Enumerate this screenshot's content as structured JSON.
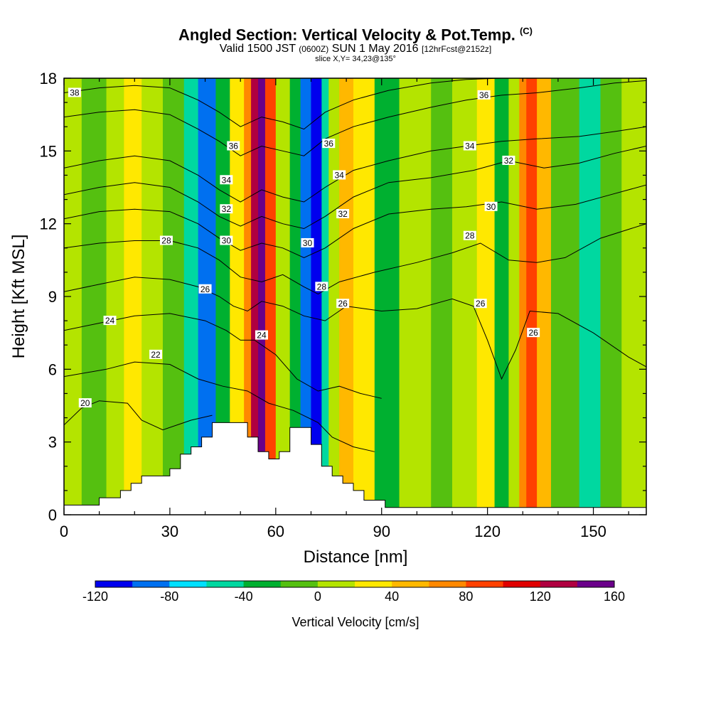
{
  "header": {
    "title": "Angled Section: Vertical Velocity & Pot.Temp.",
    "title_mark": "(C)",
    "valid_prefix": "Valid 1500 JST",
    "valid_utc": "(0600Z)",
    "valid_date": "SUN 1 May 2016",
    "forecast": "[12hrFcst@2152z]",
    "slice": "slice X,Y= 34,23@135°"
  },
  "chart_data": {
    "type": "heatmap",
    "xlabel": "Distance [nm]",
    "ylabel": "Height [Kft MSL]",
    "xlim": [
      0,
      165
    ],
    "ylim": [
      0,
      18
    ],
    "xticks": [
      0,
      30,
      60,
      90,
      120,
      150
    ],
    "yticks": [
      0,
      3,
      6,
      9,
      12,
      15,
      18
    ],
    "colorbar": {
      "title": "Vertical Velocity [cm/s]",
      "labels": [
        "-120",
        "-80",
        "-40",
        "0",
        "40",
        "80",
        "120",
        "160"
      ],
      "levels": [
        -120,
        -100,
        -80,
        -60,
        -40,
        -20,
        0,
        20,
        40,
        60,
        80,
        100,
        120,
        140,
        160
      ],
      "colors": [
        "#0000ee",
        "#0070f0",
        "#00e0ff",
        "#00d8a0",
        "#00b030",
        "#55c010",
        "#b4e400",
        "#ffe800",
        "#ffb800",
        "#ff8800",
        "#ff4000",
        "#e00000",
        "#b00040",
        "#6a008a"
      ]
    },
    "velocity_bands": [
      {
        "x": 0,
        "value": 15
      },
      {
        "x": 5,
        "value": -5
      },
      {
        "x": 12,
        "value": 15
      },
      {
        "x": 17,
        "value": 30
      },
      {
        "x": 22,
        "value": 10
      },
      {
        "x": 28,
        "value": -15
      },
      {
        "x": 34,
        "value": -45
      },
      {
        "x": 38,
        "value": -90
      },
      {
        "x": 43,
        "value": -25
      },
      {
        "x": 47,
        "value": 25
      },
      {
        "x": 51,
        "value": 75
      },
      {
        "x": 53,
        "value": 120
      },
      {
        "x": 55,
        "value": 160
      },
      {
        "x": 57,
        "value": 95
      },
      {
        "x": 60,
        "value": 5
      },
      {
        "x": 64,
        "value": -35
      },
      {
        "x": 67,
        "value": -85
      },
      {
        "x": 70,
        "value": -120
      },
      {
        "x": 73,
        "value": -60
      },
      {
        "x": 75,
        "value": 5
      },
      {
        "x": 78,
        "value": 45
      },
      {
        "x": 82,
        "value": 20
      },
      {
        "x": 88,
        "value": -25
      },
      {
        "x": 95,
        "value": 10
      },
      {
        "x": 104,
        "value": -15
      },
      {
        "x": 110,
        "value": 10
      },
      {
        "x": 117,
        "value": 30
      },
      {
        "x": 122,
        "value": -25
      },
      {
        "x": 126,
        "value": 10
      },
      {
        "x": 129,
        "value": 65
      },
      {
        "x": 131,
        "value": 95
      },
      {
        "x": 134,
        "value": 40
      },
      {
        "x": 138,
        "value": -20
      },
      {
        "x": 146,
        "value": -45
      },
      {
        "x": 152,
        "value": -20
      },
      {
        "x": 158,
        "value": 5
      },
      {
        "x": 165,
        "value": 15
      }
    ],
    "terrain": [
      {
        "x": 0,
        "h": 0.4
      },
      {
        "x": 10,
        "h": 0.4
      },
      {
        "x": 10,
        "h": 0.7
      },
      {
        "x": 16,
        "h": 0.7
      },
      {
        "x": 16,
        "h": 1.0
      },
      {
        "x": 19,
        "h": 1.0
      },
      {
        "x": 19,
        "h": 1.3
      },
      {
        "x": 22,
        "h": 1.3
      },
      {
        "x": 22,
        "h": 1.6
      },
      {
        "x": 30,
        "h": 1.6
      },
      {
        "x": 30,
        "h": 1.9
      },
      {
        "x": 33,
        "h": 1.9
      },
      {
        "x": 33,
        "h": 2.5
      },
      {
        "x": 36,
        "h": 2.5
      },
      {
        "x": 36,
        "h": 2.8
      },
      {
        "x": 39,
        "h": 2.8
      },
      {
        "x": 39,
        "h": 3.2
      },
      {
        "x": 42,
        "h": 3.2
      },
      {
        "x": 42,
        "h": 3.8
      },
      {
        "x": 52,
        "h": 3.8
      },
      {
        "x": 52,
        "h": 3.2
      },
      {
        "x": 55,
        "h": 3.2
      },
      {
        "x": 55,
        "h": 2.6
      },
      {
        "x": 58,
        "h": 2.6
      },
      {
        "x": 58,
        "h": 2.3
      },
      {
        "x": 61,
        "h": 2.3
      },
      {
        "x": 61,
        "h": 2.6
      },
      {
        "x": 64,
        "h": 2.6
      },
      {
        "x": 64,
        "h": 3.6
      },
      {
        "x": 70,
        "h": 3.6
      },
      {
        "x": 70,
        "h": 2.9
      },
      {
        "x": 73,
        "h": 2.9
      },
      {
        "x": 73,
        "h": 2.0
      },
      {
        "x": 76,
        "h": 2.0
      },
      {
        "x": 76,
        "h": 1.6
      },
      {
        "x": 79,
        "h": 1.6
      },
      {
        "x": 79,
        "h": 1.3
      },
      {
        "x": 82,
        "h": 1.3
      },
      {
        "x": 82,
        "h": 1.0
      },
      {
        "x": 85,
        "h": 1.0
      },
      {
        "x": 85,
        "h": 0.6
      },
      {
        "x": 91,
        "h": 0.6
      },
      {
        "x": 91,
        "h": 0.3
      },
      {
        "x": 165,
        "h": 0.3
      }
    ],
    "isentropes": [
      {
        "value": 20,
        "points": [
          [
            0,
            3.7
          ],
          [
            5,
            4.4
          ],
          [
            10,
            4.7
          ],
          [
            18,
            4.6
          ],
          [
            22,
            3.9
          ],
          [
            28,
            3.5
          ],
          [
            36,
            3.9
          ],
          [
            42,
            4.1
          ]
        ]
      },
      {
        "value": 22,
        "points": [
          [
            0,
            5.7
          ],
          [
            12,
            6.0
          ],
          [
            20,
            6.3
          ],
          [
            30,
            6.2
          ],
          [
            38,
            5.6
          ],
          [
            45,
            5.3
          ],
          [
            52,
            5.1
          ],
          [
            58,
            4.6
          ],
          [
            65,
            4.3
          ],
          [
            72,
            3.8
          ],
          [
            76,
            3.2
          ],
          [
            82,
            2.8
          ],
          [
            88,
            2.6
          ]
        ]
      },
      {
        "value": 24,
        "points": [
          [
            0,
            7.6
          ],
          [
            10,
            7.9
          ],
          [
            20,
            8.2
          ],
          [
            30,
            8.3
          ],
          [
            40,
            8.0
          ],
          [
            46,
            7.6
          ],
          [
            50,
            7.2
          ],
          [
            54,
            7.2
          ],
          [
            60,
            6.6
          ],
          [
            66,
            5.6
          ],
          [
            72,
            5.1
          ],
          [
            78,
            5.3
          ],
          [
            84,
            5.0
          ],
          [
            90,
            4.8
          ]
        ]
      },
      {
        "value": 26,
        "points": [
          [
            0,
            9.2
          ],
          [
            10,
            9.5
          ],
          [
            20,
            9.8
          ],
          [
            30,
            9.7
          ],
          [
            38,
            9.4
          ],
          [
            44,
            9.0
          ],
          [
            48,
            8.6
          ],
          [
            52,
            8.4
          ],
          [
            56,
            8.8
          ],
          [
            62,
            8.6
          ],
          [
            68,
            8.2
          ],
          [
            74,
            8.0
          ],
          [
            80,
            8.6
          ],
          [
            90,
            8.4
          ],
          [
            100,
            8.5
          ],
          [
            110,
            8.9
          ],
          [
            116,
            8.6
          ],
          [
            120,
            7.2
          ],
          [
            124,
            5.6
          ],
          [
            128,
            6.8
          ],
          [
            132,
            8.4
          ],
          [
            140,
            8.3
          ],
          [
            150,
            7.5
          ],
          [
            160,
            6.5
          ],
          [
            165,
            6.1
          ]
        ]
      },
      {
        "value": 28,
        "points": [
          [
            0,
            11.0
          ],
          [
            10,
            11.2
          ],
          [
            20,
            11.3
          ],
          [
            30,
            11.3
          ],
          [
            38,
            11.0
          ],
          [
            44,
            10.5
          ],
          [
            50,
            9.8
          ],
          [
            56,
            9.6
          ],
          [
            62,
            9.9
          ],
          [
            68,
            9.4
          ],
          [
            72,
            9.1
          ],
          [
            78,
            9.6
          ],
          [
            88,
            10.0
          ],
          [
            100,
            10.4
          ],
          [
            110,
            10.8
          ],
          [
            118,
            11.2
          ],
          [
            126,
            10.5
          ],
          [
            134,
            10.4
          ],
          [
            142,
            10.6
          ],
          [
            152,
            11.4
          ],
          [
            165,
            12.0
          ]
        ]
      },
      {
        "value": 30,
        "points": [
          [
            0,
            12.2
          ],
          [
            10,
            12.5
          ],
          [
            20,
            12.6
          ],
          [
            30,
            12.5
          ],
          [
            38,
            12.0
          ],
          [
            44,
            11.4
          ],
          [
            50,
            10.9
          ],
          [
            56,
            11.2
          ],
          [
            62,
            11.0
          ],
          [
            68,
            10.6
          ],
          [
            74,
            11.0
          ],
          [
            82,
            11.8
          ],
          [
            92,
            12.4
          ],
          [
            104,
            12.6
          ],
          [
            114,
            12.7
          ],
          [
            124,
            12.9
          ],
          [
            134,
            12.6
          ],
          [
            145,
            12.8
          ],
          [
            155,
            13.2
          ],
          [
            165,
            13.6
          ]
        ]
      },
      {
        "value": 32,
        "points": [
          [
            0,
            13.2
          ],
          [
            10,
            13.5
          ],
          [
            20,
            13.7
          ],
          [
            30,
            13.5
          ],
          [
            38,
            12.9
          ],
          [
            44,
            12.3
          ],
          [
            50,
            11.9
          ],
          [
            56,
            12.3
          ],
          [
            62,
            12.0
          ],
          [
            68,
            11.8
          ],
          [
            74,
            12.3
          ],
          [
            82,
            13.1
          ],
          [
            92,
            13.7
          ],
          [
            104,
            13.9
          ],
          [
            116,
            14.2
          ],
          [
            126,
            14.6
          ],
          [
            136,
            14.3
          ],
          [
            146,
            14.5
          ],
          [
            156,
            14.9
          ],
          [
            165,
            15.2
          ]
        ]
      },
      {
        "value": 34,
        "points": [
          [
            0,
            14.3
          ],
          [
            10,
            14.6
          ],
          [
            20,
            14.8
          ],
          [
            30,
            14.6
          ],
          [
            38,
            14.0
          ],
          [
            44,
            13.4
          ],
          [
            50,
            12.9
          ],
          [
            56,
            13.4
          ],
          [
            62,
            13.1
          ],
          [
            68,
            12.9
          ],
          [
            74,
            13.5
          ],
          [
            82,
            14.2
          ],
          [
            92,
            14.6
          ],
          [
            104,
            15.0
          ],
          [
            114,
            15.2
          ],
          [
            124,
            15.4
          ],
          [
            134,
            15.5
          ],
          [
            146,
            15.6
          ],
          [
            156,
            15.8
          ],
          [
            165,
            16.0
          ]
        ]
      },
      {
        "value": 36,
        "points": [
          [
            0,
            16.4
          ],
          [
            10,
            16.6
          ],
          [
            20,
            16.7
          ],
          [
            30,
            16.5
          ],
          [
            38,
            15.9
          ],
          [
            44,
            15.4
          ],
          [
            50,
            14.8
          ],
          [
            56,
            15.2
          ],
          [
            62,
            15.0
          ],
          [
            68,
            14.8
          ],
          [
            74,
            15.5
          ],
          [
            82,
            16.0
          ],
          [
            92,
            16.4
          ],
          [
            104,
            16.8
          ],
          [
            114,
            17.1
          ],
          [
            124,
            17.3
          ],
          [
            134,
            17.4
          ],
          [
            146,
            17.6
          ],
          [
            156,
            17.8
          ],
          [
            165,
            17.9
          ]
        ]
      },
      {
        "value": 38,
        "points": [
          [
            0,
            17.4
          ],
          [
            10,
            17.6
          ],
          [
            20,
            17.7
          ],
          [
            30,
            17.6
          ],
          [
            38,
            17.1
          ],
          [
            44,
            16.6
          ],
          [
            50,
            16.0
          ],
          [
            56,
            16.4
          ],
          [
            62,
            16.2
          ],
          [
            68,
            15.9
          ],
          [
            74,
            16.6
          ],
          [
            82,
            17.1
          ],
          [
            92,
            17.5
          ],
          [
            104,
            17.8
          ],
          [
            114,
            17.95
          ],
          [
            124,
            18.0
          ]
        ]
      }
    ],
    "contour_labels": [
      {
        "text": "38",
        "x": 3,
        "y": 17.4
      },
      {
        "text": "36",
        "x": 119,
        "y": 17.3
      },
      {
        "text": "36",
        "x": 48,
        "y": 15.2
      },
      {
        "text": "36",
        "x": 75,
        "y": 15.3
      },
      {
        "text": "34",
        "x": 115,
        "y": 15.2
      },
      {
        "text": "34",
        "x": 46,
        "y": 13.8
      },
      {
        "text": "34",
        "x": 78,
        "y": 14.0
      },
      {
        "text": "32",
        "x": 126,
        "y": 14.6
      },
      {
        "text": "32",
        "x": 46,
        "y": 12.6
      },
      {
        "text": "32",
        "x": 79,
        "y": 12.4
      },
      {
        "text": "30",
        "x": 121,
        "y": 12.7
      },
      {
        "text": "30",
        "x": 46,
        "y": 11.3
      },
      {
        "text": "30",
        "x": 69,
        "y": 11.2
      },
      {
        "text": "28",
        "x": 29,
        "y": 11.3
      },
      {
        "text": "28",
        "x": 115,
        "y": 11.5
      },
      {
        "text": "28",
        "x": 73,
        "y": 9.4
      },
      {
        "text": "26",
        "x": 40,
        "y": 9.3
      },
      {
        "text": "26",
        "x": 79,
        "y": 8.7
      },
      {
        "text": "26",
        "x": 118,
        "y": 8.7
      },
      {
        "text": "26",
        "x": 133,
        "y": 7.5
      },
      {
        "text": "24",
        "x": 13,
        "y": 8.0
      },
      {
        "text": "24",
        "x": 56,
        "y": 7.4
      },
      {
        "text": "22",
        "x": 26,
        "y": 6.6
      },
      {
        "text": "20",
        "x": 6,
        "y": 4.6
      }
    ]
  }
}
